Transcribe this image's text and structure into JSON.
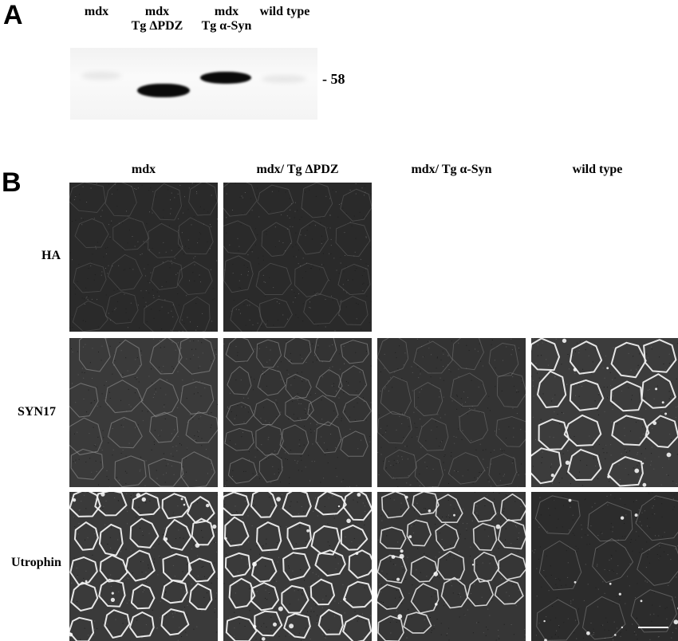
{
  "panel_a": {
    "letter": "A",
    "lanes": [
      {
        "line1": "",
        "line2": "mdx"
      },
      {
        "line1": "mdx",
        "line2": "Tg ΔPDZ"
      },
      {
        "line1": "mdx",
        "line2": "Tg α-Syn"
      },
      {
        "line1": "",
        "line2": "wild type"
      }
    ],
    "marker": "- 58"
  },
  "panel_b": {
    "letter": "B",
    "columns": [
      "mdx",
      "mdx/ Tg ΔPDZ",
      "mdx/ Tg α-Syn",
      "wild type"
    ],
    "rows": [
      "HA",
      "SYN17",
      "Utrophin"
    ]
  },
  "colors": {
    "tile_background": "#2b2b2b",
    "membrane_bright": "#e8e8e8",
    "band": "#0a0a0a"
  }
}
